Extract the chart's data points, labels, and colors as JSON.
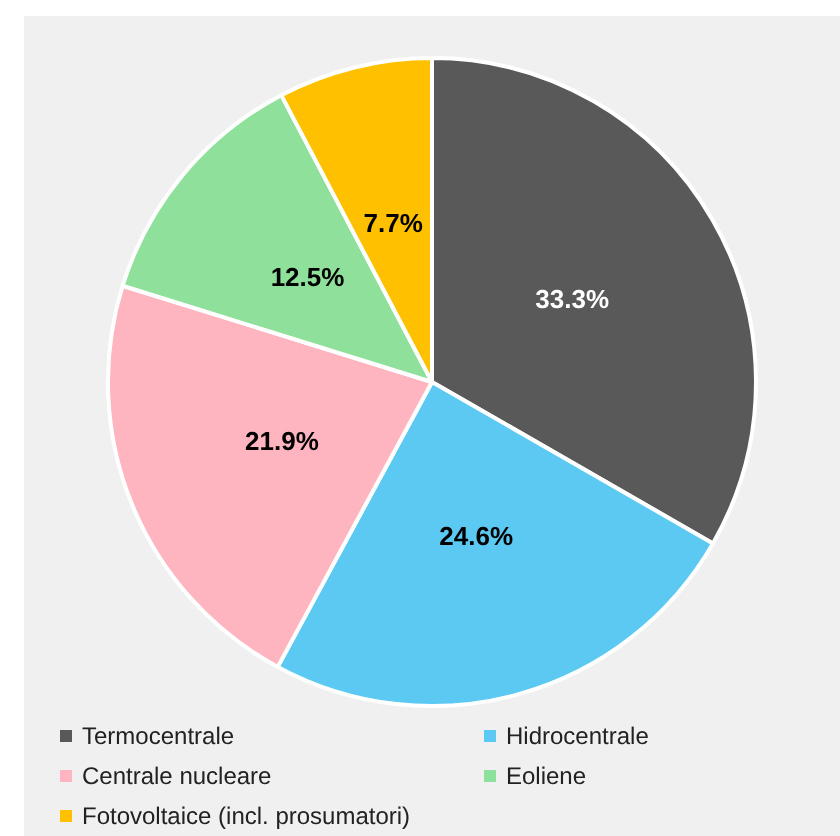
{
  "chart_data": {
    "type": "pie",
    "categories": [
      "Termocentrale",
      "Hidrocentrale",
      "Centrale nucleare",
      "Eoliene",
      "Fotovoltaice (incl. prosumatori)"
    ],
    "values": [
      33.3,
      24.6,
      21.9,
      12.5,
      7.7
    ],
    "colors": [
      "#595959",
      "#5bc9f2",
      "#ffb5c0",
      "#8ee09a",
      "#ffc000"
    ],
    "value_labels": [
      "33.3%",
      "24.6%",
      "21.9%",
      "12.5%",
      "7.7%"
    ],
    "legend": "bottom"
  }
}
